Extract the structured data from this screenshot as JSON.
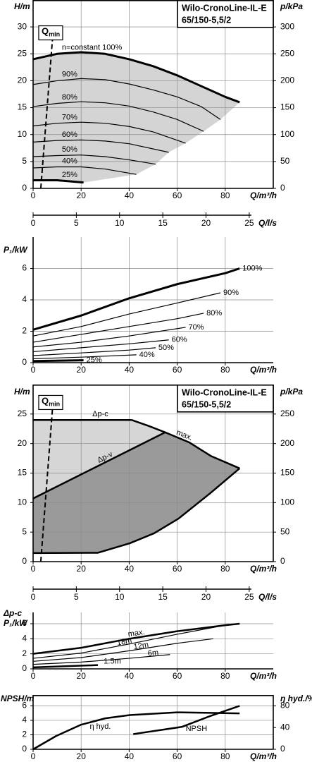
{
  "chart_data": [
    {
      "type": "line",
      "title": "Wilo-CronoLine-IL-E",
      "subtitle": "65/150-5,5/2",
      "y_label": "H/m",
      "y2_label": "p/kPa",
      "x_label": "Q/m³/h",
      "x2_label": "Q/l/s",
      "xlim": [
        0,
        100
      ],
      "xticks": [
        0,
        20,
        40,
        60,
        80
      ],
      "x2lim": [
        0,
        27.78
      ],
      "x2ticks": [
        0,
        5,
        10,
        15,
        20,
        25
      ],
      "ylim": [
        0,
        35
      ],
      "yticks": [
        0,
        5,
        10,
        15,
        20,
        25,
        30
      ],
      "y2lim": [
        0,
        350
      ],
      "y2ticks": [
        0,
        50,
        100,
        150,
        200,
        250,
        300
      ],
      "grid": true,
      "envelope": "#d4d4d4",
      "qmin": {
        "label": "Q",
        "label_sub": "min",
        "x": [
          3.2,
          8.2
        ],
        "values": [
          0,
          28.5
        ]
      },
      "series": [
        {
          "name": "n=constant 100%",
          "color": "#000000",
          "line_width": 3,
          "x": [
            0,
            10,
            20,
            30,
            40,
            50,
            60,
            70,
            80,
            86
          ],
          "values": [
            24,
            25,
            25.3,
            25,
            24,
            22.7,
            21,
            19,
            17,
            16
          ]
        },
        {
          "name": "90%",
          "color": "#000000",
          "line_width": 1.2,
          "x": [
            0,
            10,
            20,
            30,
            40,
            50,
            60,
            70,
            78
          ],
          "values": [
            19.3,
            20,
            20.4,
            20.2,
            19.4,
            18.3,
            17,
            15.2,
            12.8
          ]
        },
        {
          "name": "80%",
          "color": "#000000",
          "line_width": 1.2,
          "x": [
            0,
            10,
            20,
            30,
            40,
            50,
            60,
            71
          ],
          "values": [
            15.2,
            15.8,
            16.1,
            15.9,
            15.3,
            14.2,
            12.8,
            10.6
          ]
        },
        {
          "name": "70%",
          "color": "#000000",
          "line_width": 1.2,
          "x": [
            0,
            10,
            20,
            30,
            40,
            50,
            63.5
          ],
          "values": [
            11.6,
            12.1,
            12.3,
            12.1,
            11.5,
            10.5,
            8.4
          ]
        },
        {
          "name": "60%",
          "color": "#000000",
          "line_width": 1.2,
          "x": [
            0,
            10,
            20,
            30,
            40,
            56.5
          ],
          "values": [
            8.6,
            8.9,
            9.0,
            8.8,
            8.3,
            6.7
          ]
        },
        {
          "name": "50%",
          "color": "#000000",
          "line_width": 1.2,
          "x": [
            0,
            10,
            20,
            30,
            40,
            51
          ],
          "values": [
            5.9,
            6.1,
            6.2,
            5.9,
            5.3,
            4.5
          ]
        },
        {
          "name": "40%",
          "color": "#000000",
          "line_width": 1.2,
          "x": [
            0,
            10,
            20,
            30,
            43
          ],
          "values": [
            3.8,
            4.0,
            4.0,
            3.6,
            2.6
          ]
        },
        {
          "name": "25%",
          "color": "#000000",
          "line_width": 3,
          "x": [
            0,
            10,
            21
          ],
          "values": [
            1.5,
            1.5,
            1.1
          ]
        }
      ]
    },
    {
      "type": "line",
      "y_label": "P₁/kW",
      "x_label": "Q/m³/h",
      "xlim": [
        0,
        100
      ],
      "xticks": [
        0,
        20,
        40,
        60,
        80
      ],
      "ylim": [
        0,
        8
      ],
      "yticks": [
        0,
        2,
        4,
        6
      ],
      "grid": true,
      "series": [
        {
          "name": "100%",
          "color": "#000000",
          "line_width": 3,
          "x": [
            0,
            20,
            40,
            60,
            80,
            86
          ],
          "values": [
            2.1,
            3.0,
            4.1,
            5.0,
            5.7,
            6.0
          ]
        },
        {
          "name": "90%",
          "color": "#000000",
          "line_width": 1.2,
          "x": [
            0,
            20,
            40,
            60,
            78
          ],
          "values": [
            1.7,
            2.3,
            3.1,
            3.8,
            4.45
          ]
        },
        {
          "name": "80%",
          "color": "#000000",
          "line_width": 1.2,
          "x": [
            0,
            20,
            40,
            60,
            71
          ],
          "values": [
            1.3,
            1.8,
            2.3,
            2.8,
            3.15
          ]
        },
        {
          "name": "70%",
          "color": "#000000",
          "line_width": 1.2,
          "x": [
            0,
            20,
            40,
            63.5
          ],
          "values": [
            1.0,
            1.3,
            1.7,
            2.25
          ]
        },
        {
          "name": "60%",
          "color": "#000000",
          "line_width": 1.2,
          "x": [
            0,
            20,
            40,
            56.5
          ],
          "values": [
            0.7,
            0.95,
            1.2,
            1.45
          ]
        },
        {
          "name": "50%",
          "color": "#000000",
          "line_width": 1.2,
          "x": [
            0,
            20,
            40,
            51
          ],
          "values": [
            0.45,
            0.62,
            0.8,
            0.95
          ]
        },
        {
          "name": "40%",
          "color": "#000000",
          "line_width": 1.2,
          "x": [
            0,
            20,
            43
          ],
          "values": [
            0.25,
            0.35,
            0.5
          ]
        },
        {
          "name": "25%",
          "color": "#000000",
          "line_width": 3,
          "x": [
            0,
            21
          ],
          "values": [
            0.1,
            0.15
          ]
        }
      ]
    },
    {
      "type": "line",
      "title": "Wilo-CronoLine-IL-E",
      "subtitle": "65/150-5,5/2",
      "y_label": "H/m",
      "y2_label": "p/kPa",
      "x_label": "Q/m³/h",
      "x2_label": "Q/l/s",
      "xlim": [
        0,
        100
      ],
      "xticks": [
        0,
        20,
        40,
        60,
        80
      ],
      "x2lim": [
        0,
        27.78
      ],
      "x2ticks": [
        0,
        5,
        10,
        15,
        20,
        25
      ],
      "ylim": [
        0,
        30
      ],
      "yticks": [
        0,
        5,
        10,
        15,
        20,
        25
      ],
      "y2lim": [
        0,
        300
      ],
      "y2ticks": [
        0,
        50,
        100,
        150,
        200,
        250
      ],
      "grid": true,
      "regions": [
        {
          "color": "#d6d6d6",
          "outline": [
            0,
            2,
            3
          ]
        },
        {
          "color": "#9a9a9a",
          "outline": [
            1,
            2,
            3
          ]
        }
      ],
      "qmin": {
        "label": "Q",
        "label_sub": "min",
        "x": [
          3.2,
          8.2
        ],
        "values": [
          0,
          26.6
        ]
      },
      "series": [
        {
          "name": "Δp-c",
          "color": "#000000",
          "line_width": 2.5,
          "x": [
            0,
            41
          ],
          "values": [
            24,
            24
          ]
        },
        {
          "name": "Δp-v",
          "color": "#000000",
          "line_width": 2.5,
          "x": [
            0,
            55
          ],
          "values": [
            10.7,
            21.9
          ]
        },
        {
          "name": "max.",
          "color": "#000000",
          "line_width": 2.5,
          "x": [
            41,
            48,
            55,
            65,
            74,
            86
          ],
          "values": [
            24,
            23,
            21.9,
            20.2,
            17.9,
            15.8
          ]
        },
        {
          "color": "#000000",
          "line_width": 2.5,
          "x": [
            0,
            27,
            28.6,
            40.2,
            50.4,
            60.6,
            73.8,
            86
          ],
          "values": [
            1.45,
            1.5,
            1.7,
            3.1,
            4.8,
            7.3,
            11.6,
            15.8
          ]
        }
      ]
    },
    {
      "type": "line",
      "y_label_top": "Δp-c",
      "y_label": "P₁/kW",
      "x_label": "Q/m³/h",
      "xlim": [
        0,
        100
      ],
      "xticks": [
        0,
        20,
        40,
        60,
        80
      ],
      "ylim": [
        0,
        7.5
      ],
      "yticks": [
        0,
        2,
        4,
        6
      ],
      "grid": true,
      "series": [
        {
          "name": "max.",
          "color": "#000000",
          "line_width": 2.5,
          "x": [
            0,
            20,
            40,
            60,
            80,
            86
          ],
          "values": [
            2.0,
            2.8,
            4.0,
            5.0,
            5.8,
            6.0
          ]
        },
        {
          "name": "18m",
          "color": "#000000",
          "line_width": 1.2,
          "x": [
            0,
            20,
            40,
            60,
            80
          ],
          "values": [
            1.4,
            2.1,
            3.3,
            4.6,
            5.8
          ]
        },
        {
          "name": "12m",
          "color": "#000000",
          "line_width": 1.2,
          "x": [
            0,
            20,
            40,
            60,
            75
          ],
          "values": [
            1.0,
            1.5,
            2.4,
            3.4,
            4.0
          ]
        },
        {
          "name": "6m",
          "color": "#000000",
          "line_width": 1.2,
          "x": [
            0,
            20,
            40,
            57
          ],
          "values": [
            0.6,
            0.9,
            1.4,
            1.9
          ]
        },
        {
          "name": "1.5m",
          "color": "#000000",
          "line_width": 2.5,
          "x": [
            0,
            27
          ],
          "values": [
            0.2,
            0.5
          ]
        }
      ]
    },
    {
      "type": "line",
      "y_label": "NPSH/m",
      "y2_label": "η hyd./%",
      "x_label": "Q/m³/h",
      "xlim": [
        0,
        100
      ],
      "xticks": [
        0,
        20,
        40,
        60,
        80
      ],
      "ylim": [
        0,
        7.5
      ],
      "yticks": [
        0,
        2,
        4,
        6
      ],
      "y2lim": [
        0,
        100
      ],
      "y2ticks": [
        0,
        40,
        80
      ],
      "grid": true,
      "series": [
        {
          "name": "η hyd.",
          "color": "#000000",
          "line_width": 2.5,
          "axis": "y2",
          "x": [
            0,
            9.6,
            19.8,
            30,
            40.2,
            60,
            73.8,
            86
          ],
          "values": [
            0,
            24.5,
            45,
            57,
            63,
            68,
            67,
            66
          ]
        },
        {
          "name": "NPSH",
          "color": "#000000",
          "line_width": 2.5,
          "x": [
            41.7,
            62,
            73.8,
            86
          ],
          "values": [
            2.1,
            3.1,
            4.6,
            6.0
          ]
        }
      ]
    }
  ]
}
